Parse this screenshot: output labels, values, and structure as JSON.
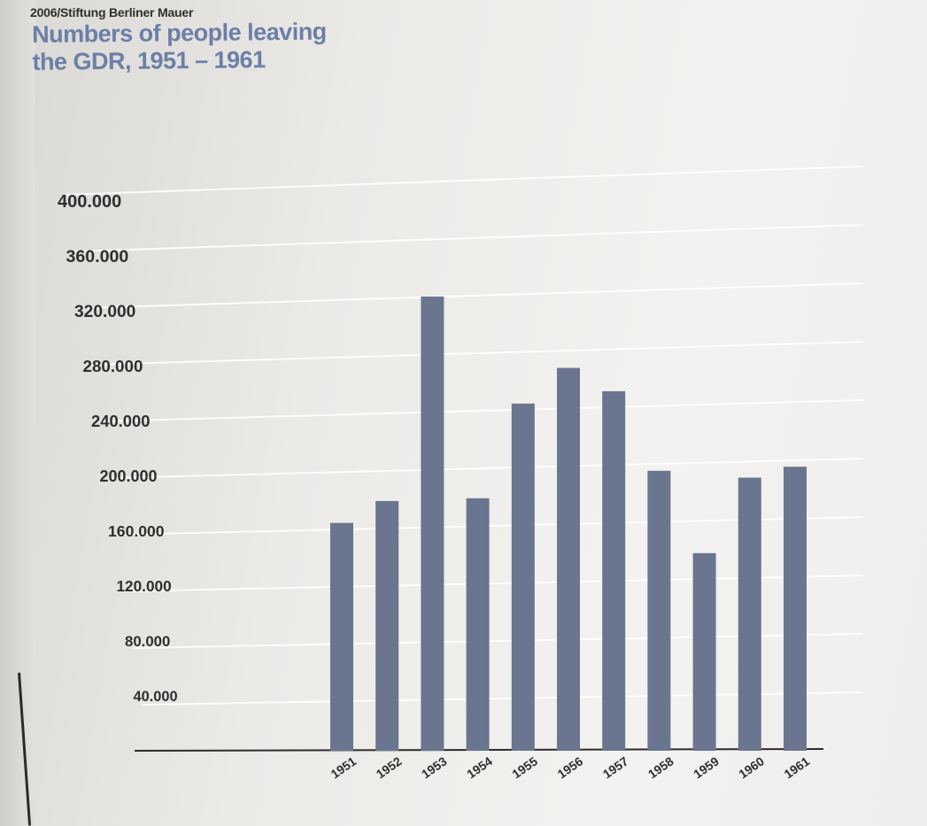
{
  "header": {
    "credit": "2006/Stiftung Berliner Mauer",
    "title_line1": "Numbers of people leaving",
    "title_line2": "the GDR, 1951 – 1961"
  },
  "colors": {
    "bar": "#6a7690",
    "title": "#6b7fa7",
    "axis": "#2b2b2b",
    "grid": "#ffffff"
  },
  "chart_data": {
    "type": "bar",
    "title": "Numbers of people leaving the GDR, 1951 – 1961",
    "xlabel": "",
    "ylabel": "",
    "ylim": [
      0,
      400000
    ],
    "grid": true,
    "yticks": [
      {
        "value": 400000,
        "label": "400.000"
      },
      {
        "value": 360000,
        "label": "360.000"
      },
      {
        "value": 320000,
        "label": "320.000"
      },
      {
        "value": 280000,
        "label": "280.000"
      },
      {
        "value": 240000,
        "label": "240.000"
      },
      {
        "value": 200000,
        "label": "200.000"
      },
      {
        "value": 160000,
        "label": "160.000"
      },
      {
        "value": 120000,
        "label": "120.000"
      },
      {
        "value": 80000,
        "label": "80.000"
      },
      {
        "value": 40000,
        "label": "40.000"
      }
    ],
    "categories": [
      "1951",
      "1952",
      "1953",
      "1954",
      "1955",
      "1956",
      "1957",
      "1958",
      "1959",
      "1960",
      "1961"
    ],
    "values": [
      166000,
      182000,
      331000,
      184000,
      253000,
      279000,
      262000,
      204000,
      144000,
      199000,
      207000
    ]
  }
}
